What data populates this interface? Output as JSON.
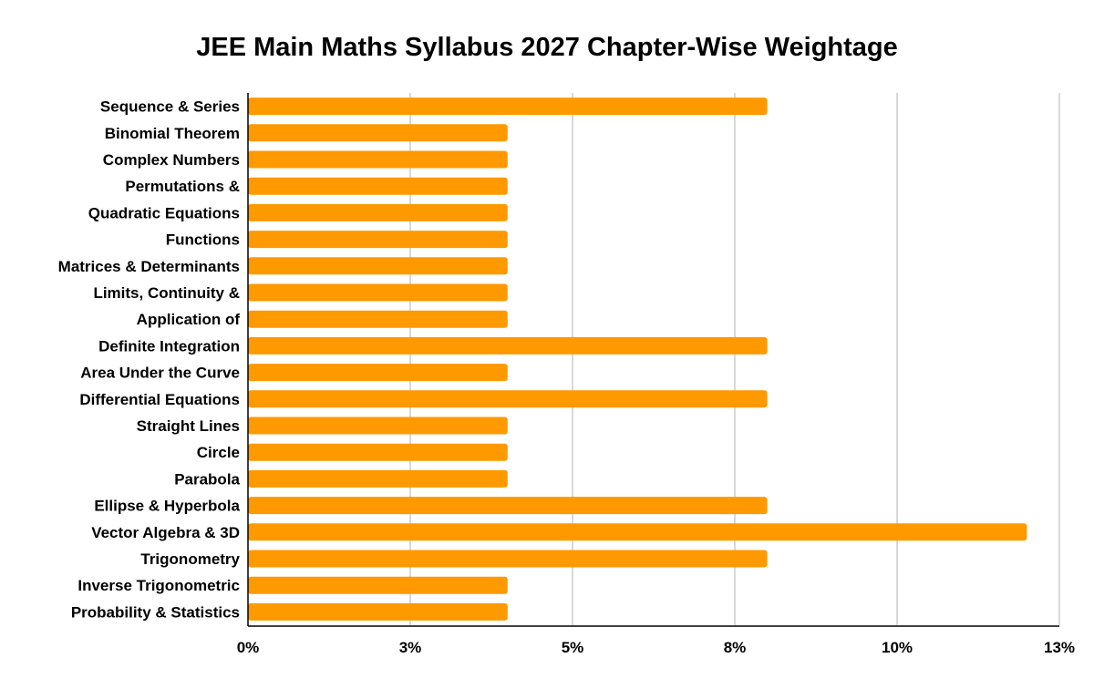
{
  "chart_data": {
    "type": "bar",
    "orientation": "horizontal",
    "title": "JEE Main Maths Syllabus 2027 Chapter-Wise Weightage",
    "categories": [
      "Sequence & Series",
      "Binomial Theorem",
      "Complex Numbers",
      "Permutations &",
      "Quadratic Equations",
      "Functions",
      "Matrices & Determinants",
      "Limits, Continuity &",
      "Application of",
      "Definite Integration",
      "Area Under the Curve",
      "Differential Equations",
      "Straight Lines",
      "Circle",
      "Parabola",
      "Ellipse & Hyperbola",
      "Vector Algebra & 3D",
      "Trigonometry",
      "Inverse Trigonometric",
      "Probability & Statistics"
    ],
    "values": [
      8,
      4,
      4,
      4,
      4,
      4,
      4,
      4,
      4,
      8,
      4,
      8,
      4,
      4,
      4,
      8,
      12,
      8,
      4,
      4
    ],
    "xlim": [
      0,
      12.5
    ],
    "xticks": [
      0,
      2.5,
      5,
      7.5,
      10,
      12.5
    ],
    "xtick_labels": [
      "0%",
      "3%",
      "5%",
      "8%",
      "10%",
      "13%"
    ],
    "xlabel": "",
    "ylabel": "",
    "grid": true,
    "legend": "none",
    "colors": {
      "bar": "#FF9900",
      "grid": "#CCCCCC",
      "axis": "#000000",
      "text": "#000000"
    }
  }
}
